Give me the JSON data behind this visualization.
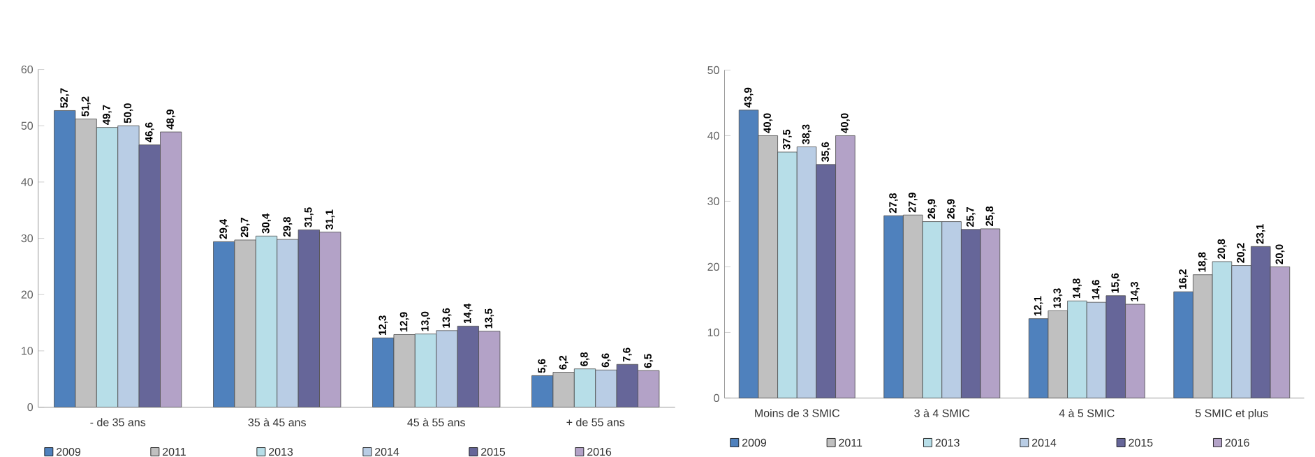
{
  "chart_data": [
    {
      "type": "bar",
      "categories": [
        "- de 35 ans",
        "35 à 45 ans",
        "45 à 55 ans",
        "+ de 55 ans"
      ],
      "series": [
        {
          "name": "2009",
          "color": "#4f81bd",
          "values": [
            52.7,
            29.4,
            12.3,
            5.6
          ],
          "value_labels": [
            "52,7",
            "29,4",
            "12,3",
            "5,6"
          ]
        },
        {
          "name": "2011",
          "color": "#c0c0c0",
          "values": [
            51.2,
            29.7,
            12.9,
            6.2
          ],
          "value_labels": [
            "51,2",
            "29,7",
            "12,9",
            "6,2"
          ]
        },
        {
          "name": "2013",
          "color": "#b7dee8",
          "values": [
            49.7,
            30.4,
            13.0,
            6.8
          ],
          "value_labels": [
            "49,7",
            "30,4",
            "13,0",
            "6,8"
          ]
        },
        {
          "name": "2014",
          "color": "#b9cde5",
          "values": [
            50.0,
            29.8,
            13.6,
            6.6
          ],
          "value_labels": [
            "50,0",
            "29,8",
            "13,6",
            "6,6"
          ]
        },
        {
          "name": "2015",
          "color": "#666699",
          "values": [
            46.6,
            31.5,
            14.4,
            7.6
          ],
          "value_labels": [
            "46,6",
            "31,5",
            "14,4",
            "7,6"
          ]
        },
        {
          "name": "2016",
          "color": "#b3a2c7",
          "values": [
            48.9,
            31.1,
            13.5,
            6.5
          ],
          "value_labels": [
            "48,9",
            "31,1",
            "13,5",
            "6,5"
          ]
        }
      ],
      "ylim": [
        0,
        60
      ],
      "yticks": [
        0,
        10,
        20,
        30,
        40,
        50,
        60
      ],
      "legend": "bottom",
      "grid": false
    },
    {
      "type": "bar",
      "categories": [
        "Moins de 3 SMIC",
        "3 à 4 SMIC",
        "4 à 5 SMIC",
        "5 SMIC et plus"
      ],
      "series": [
        {
          "name": "2009",
          "color": "#4f81bd",
          "values": [
            43.9,
            27.8,
            12.1,
            16.2
          ],
          "value_labels": [
            "43,9",
            "27,8",
            "12,1",
            "16,2"
          ]
        },
        {
          "name": "2011",
          "color": "#c0c0c0",
          "values": [
            40.0,
            27.9,
            13.3,
            18.8
          ],
          "value_labels": [
            "40,0",
            "27,9",
            "13,3",
            "18,8"
          ]
        },
        {
          "name": "2013",
          "color": "#b7dee8",
          "values": [
            37.5,
            26.9,
            14.8,
            20.8
          ],
          "value_labels": [
            "37,5",
            "26,9",
            "14,8",
            "20,8"
          ]
        },
        {
          "name": "2014",
          "color": "#b9cde5",
          "values": [
            38.3,
            26.9,
            14.6,
            20.2
          ],
          "value_labels": [
            "38,3",
            "26,9",
            "14,6",
            "20,2"
          ]
        },
        {
          "name": "2015",
          "color": "#666699",
          "values": [
            35.6,
            25.7,
            15.6,
            23.1
          ],
          "value_labels": [
            "35,6",
            "25,7",
            "15,6",
            "23,1"
          ]
        },
        {
          "name": "2016",
          "color": "#b3a2c7",
          "values": [
            40.0,
            25.8,
            14.3,
            20.0
          ],
          "value_labels": [
            "40,0",
            "25,8",
            "14,3",
            "20,0"
          ]
        }
      ],
      "ylim": [
        0,
        50
      ],
      "yticks": [
        0,
        10,
        20,
        30,
        40,
        50
      ],
      "legend": "bottom",
      "grid": false
    }
  ]
}
